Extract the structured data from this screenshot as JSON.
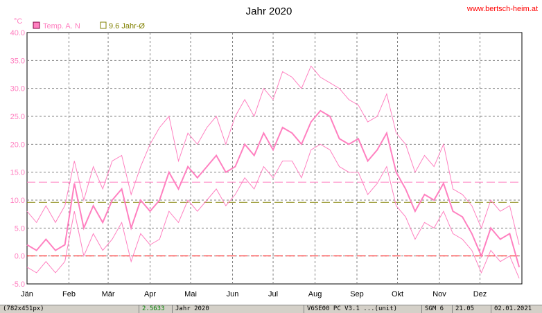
{
  "chart_data": {
    "type": "line",
    "title": "Jahr 2020",
    "website": "www.bertsch-heim.at",
    "y_unit": "°C",
    "ylim": [
      -5,
      40
    ],
    "y_ticks": [
      "-5.0",
      "0.0",
      "5.0",
      "10.0",
      "15.0",
      "20.0",
      "25.0",
      "30.0",
      "35.0",
      "40.0"
    ],
    "x_months": [
      "Jän",
      "Feb",
      "Mär",
      "Apr",
      "Mai",
      "Jun",
      "Jul",
      "Aug",
      "Sep",
      "Okt",
      "Nov",
      "Dez"
    ],
    "grid": true,
    "legend_position": "top-left",
    "legend": [
      {
        "label": "Temp. A. N",
        "color": "#ff80c0",
        "marker": "filled-square"
      },
      {
        "label": "9.6 Jahr-Ø",
        "color": "#808000",
        "marker": "hollow-square"
      }
    ],
    "reference_lines": [
      {
        "label": "9.6 Jahr-Ø",
        "value": 9.6,
        "color": "#808000"
      },
      {
        "value": 13.2,
        "color": "#ff80c0"
      },
      {
        "value": 0,
        "color": "#ff0000"
      }
    ],
    "series": [
      {
        "name": "Temp. A. N",
        "color": "#ff80c0",
        "x": [
          "2020-01-01",
          "2020-01-08",
          "2020-01-15",
          "2020-01-22",
          "2020-01-29",
          "2020-02-05",
          "2020-02-12",
          "2020-02-19",
          "2020-02-26",
          "2020-03-04",
          "2020-03-11",
          "2020-03-18",
          "2020-03-25",
          "2020-04-01",
          "2020-04-08",
          "2020-04-15",
          "2020-04-22",
          "2020-04-29",
          "2020-05-06",
          "2020-05-13",
          "2020-05-20",
          "2020-05-27",
          "2020-06-03",
          "2020-06-10",
          "2020-06-17",
          "2020-06-24",
          "2020-07-01",
          "2020-07-08",
          "2020-07-15",
          "2020-07-22",
          "2020-07-29",
          "2020-08-05",
          "2020-08-12",
          "2020-08-19",
          "2020-08-26",
          "2020-09-02",
          "2020-09-09",
          "2020-09-16",
          "2020-09-23",
          "2020-09-30",
          "2020-10-07",
          "2020-10-14",
          "2020-10-21",
          "2020-10-28",
          "2020-11-04",
          "2020-11-11",
          "2020-11-18",
          "2020-11-25",
          "2020-12-02",
          "2020-12-09",
          "2020-12-16",
          "2020-12-23",
          "2020-12-30"
        ],
        "mean": [
          2,
          1,
          3,
          1,
          2,
          13,
          5,
          9,
          6,
          10,
          12,
          5,
          10,
          8,
          10,
          15,
          12,
          16,
          14,
          16,
          18,
          15,
          16,
          20,
          18,
          22,
          19,
          23,
          22,
          20,
          24,
          26,
          25,
          21,
          20,
          21,
          17,
          19,
          22,
          15,
          12,
          8,
          11,
          10,
          13,
          8,
          7,
          4,
          0,
          5,
          3,
          4,
          -2
        ],
        "max": [
          8,
          6,
          9,
          6,
          9,
          17,
          10,
          16,
          12,
          17,
          18,
          11,
          16,
          20,
          23,
          25,
          17,
          22,
          20,
          23,
          25,
          20,
          25,
          28,
          25,
          30,
          28,
          33,
          32,
          30,
          34,
          32,
          31,
          30,
          28,
          27,
          24,
          25,
          29,
          22,
          20,
          15,
          18,
          16,
          20,
          12,
          11,
          9,
          5,
          10,
          8,
          9,
          2
        ],
        "min": [
          -2,
          -3,
          -1,
          -3,
          -1,
          8,
          0,
          4,
          1,
          3,
          6,
          -1,
          4,
          2,
          3,
          8,
          6,
          10,
          8,
          10,
          12,
          9,
          11,
          14,
          12,
          16,
          14,
          17,
          17,
          14,
          19,
          20,
          19,
          16,
          15,
          15,
          11,
          13,
          16,
          9,
          7,
          3,
          6,
          5,
          8,
          4,
          3,
          1,
          -3,
          1,
          -1,
          0,
          -4
        ]
      }
    ]
  },
  "status_bar": {
    "segments": [
      "(782x451px)",
      "2.5633",
      "Jahr 2020",
      "V6SE00 PC V3.1 ...(unit)",
      "SGM 6",
      "21.05",
      "02.01.2021"
    ]
  }
}
